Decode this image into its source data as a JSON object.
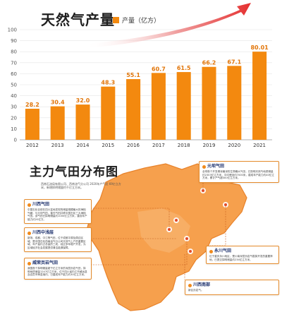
{
  "chart_data": {
    "type": "bar",
    "title": "天然气产量",
    "legend": {
      "label": "产量（亿方）",
      "position": "top"
    },
    "categories": [
      "2012",
      "2013",
      "2014",
      "2015",
      "2016",
      "2017",
      "2018",
      "2019",
      "2020",
      "2021"
    ],
    "values": [
      28.2,
      30.4,
      32.0,
      48.3,
      55.1,
      60.7,
      61.5,
      66.2,
      67.1,
      80.01
    ],
    "value_labels": [
      "28.2",
      "30.4",
      "32.0",
      "48.3",
      "55.1",
      "60.7",
      "61.5",
      "66.2",
      "67.1",
      "80.01"
    ],
    "yticks": [
      0,
      10,
      20,
      30,
      40,
      50,
      60,
      70,
      80,
      90,
      100
    ],
    "ylim": [
      0,
      100
    ],
    "grid": true,
    "colors": {
      "bar": "#f3890f",
      "label": "#e2760a",
      "arrow": "#e53030",
      "grid": "#e6e6e6"
    }
  },
  "map_section": {
    "title": "主力气田分布图",
    "intro": "西南石油局有限公司、西南油气分公司 2020年产气近 69亿立方米，新增探明储量约千亿立方米。",
    "fields": [
      {
        "title": "川西气田",
        "text": "中国石化目前在四川盆地发现的储量规模最大的海相气藏，与元坝气田、普光气田并称中国石化三大海相气田。该气田已探明储量约1000亿立方米，建设年产能力约20亿方。"
      },
      {
        "title": "川西中浅层",
        "text": "新场、成都、中江等气田，位于成都平原及周边区域，是中国石化西南油气分公司天然气上产的重要区域，年产量约占总量的三成，经过多年稳产开发，为区域经济社会发展提供清洁能源保障。"
      },
      {
        "title": "威荣页岩气田",
        "text": "我国首个探明储量超千亿立方米的深层页岩气田，探明地质储量1247亿立方米，位于四川省内江市威远县及自贡市荣县境内，已建成年产能力约30亿立方米。"
      },
      {
        "title": "元坝气田",
        "text": "全球首个开发埋深最深的生物礁大气田，已探明天然气地质储量约2303亿立方米，平均埋深约7000米，建成年产能力约40亿立方米，累计产气超300亿立方米。"
      },
      {
        "title": "永川气田",
        "text": "位于重庆永川地区，是川南深层页岩气勘探开发的重要阵地，已提交探明储量约234亿立方米。"
      },
      {
        "title": "川西南部",
        "text": "新区页岩气。"
      }
    ]
  }
}
